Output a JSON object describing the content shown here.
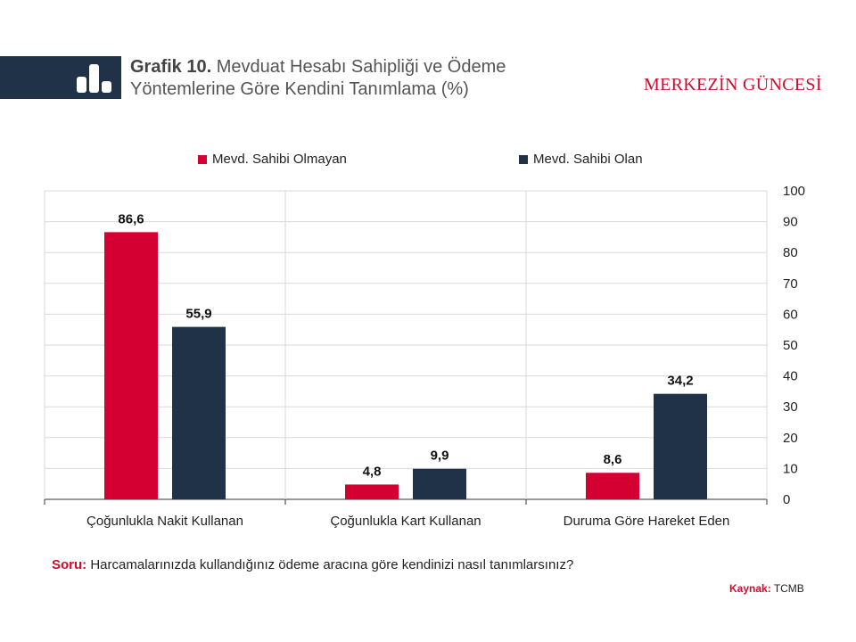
{
  "header": {
    "title_bold": "Grafik 10.",
    "title_line1": "Mevduat Hesabı Sahipliği ve Ödeme",
    "title_line2": "Yöntemlerine Göre Kendini Tanımlama (%)",
    "brand": "MERKEZİN GÜNCESİ"
  },
  "chart_data": {
    "type": "bar",
    "categories": [
      "Çoğunlukla Nakit Kullanan",
      "Çoğunlukla Kart Kullanan",
      "Duruma Göre Hareket Eden"
    ],
    "series": [
      {
        "name": "Mevd. Sahibi Olmayan",
        "color": "#d50032",
        "values": [
          86.6,
          4.8,
          8.6
        ],
        "labels": [
          "86,6",
          "4,8",
          "8,6"
        ]
      },
      {
        "name": "Mevd. Sahibi Olan",
        "color": "#1f3247",
        "values": [
          55.9,
          9.9,
          34.2
        ],
        "labels": [
          "55,9",
          "9,9",
          "34,2"
        ]
      }
    ],
    "yticks": [
      "0",
      "10",
      "20",
      "30",
      "40",
      "50",
      "60",
      "70",
      "80",
      "90",
      "100"
    ],
    "ylim": [
      0,
      100
    ],
    "yaxis_side": "right",
    "grid": true,
    "legend": "top"
  },
  "footer": {
    "question_label": "Soru:",
    "question": "Harcamalarınızda kullandığınız ödeme aracına göre kendinizi nasıl tanımlarsınız?",
    "source_label": "Kaynak:",
    "source": "TCMB"
  }
}
